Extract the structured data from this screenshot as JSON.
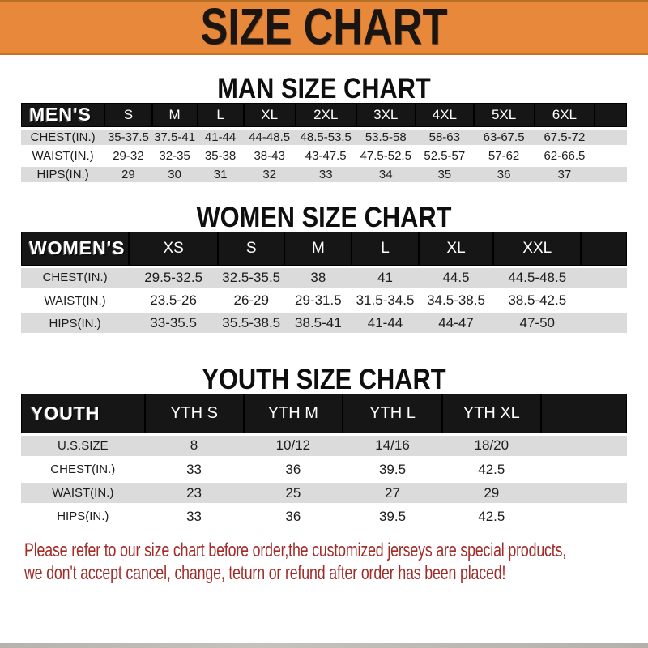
{
  "banner": {
    "title": "SIZE CHART",
    "bg_color": "#E8883A",
    "text_color": "#1A1510"
  },
  "sections": [
    {
      "title": "MAN SIZE CHART",
      "table": {
        "header": [
          "MEN'S",
          "S",
          "M",
          "L",
          "XL",
          "2XL",
          "3XL",
          "4XL",
          "5XL",
          "6XL"
        ],
        "rows": [
          [
            "CHEST(IN.)",
            "35-37.5",
            "37.5-41",
            "41-44",
            "44-48.5",
            "48.5-53.5",
            "53.5-58",
            "58-63",
            "63-67.5",
            "67.5-72"
          ],
          [
            "WAIST(IN.)",
            "29-32",
            "32-35",
            "35-38",
            "38-43",
            "43-47.5",
            "47.5-52.5",
            "52.5-57",
            "57-62",
            "62-66.5"
          ],
          [
            "HIPS(IN.)",
            "29",
            "30",
            "31",
            "32",
            "33",
            "34",
            "35",
            "36",
            "37"
          ]
        ]
      }
    },
    {
      "title": "WOMEN SIZE CHART",
      "table": {
        "header": [
          "WOMEN'S",
          "XS",
          "S",
          "M",
          "L",
          "XL",
          "XXL"
        ],
        "rows": [
          [
            "CHEST(IN.)",
            "29.5-32.5",
            "32.5-35.5",
            "38",
            "41",
            "44.5",
            "44.5-48.5"
          ],
          [
            "WAIST(IN.)",
            "23.5-26",
            "26-29",
            "29-31.5",
            "31.5-34.5",
            "34.5-38.5",
            "38.5-42.5"
          ],
          [
            "HIPS(IN.)",
            "33-35.5",
            "35.5-38.5",
            "38.5-41",
            "41-44",
            "44-47",
            "47-50"
          ]
        ]
      }
    },
    {
      "title": "YOUTH SIZE CHART",
      "table": {
        "header": [
          "YOUTH",
          "YTH S",
          "YTH M",
          "YTH L",
          "YTH XL"
        ],
        "rows": [
          [
            "U.S.SIZE",
            "8",
            "10/12",
            "14/16",
            "18/20"
          ],
          [
            "CHEST(IN.)",
            "33",
            "36",
            "39.5",
            "42.5"
          ],
          [
            "WAIST(IN.)",
            "23",
            "25",
            "27",
            "29"
          ],
          [
            "HIPS(IN.)",
            "33",
            "36",
            "39.5",
            "42.5"
          ]
        ]
      }
    }
  ],
  "footer": {
    "line1": "Please refer to our size chart before order,the customized jerseys are special products,",
    "line2": "we don't accept cancel, change, teturn or refund after order has been placed!",
    "text_color": "#A22B27"
  },
  "colors": {
    "header_bar": "#161616",
    "row_gray": "#DBDBDB",
    "row_white": "#FFFFFF"
  }
}
